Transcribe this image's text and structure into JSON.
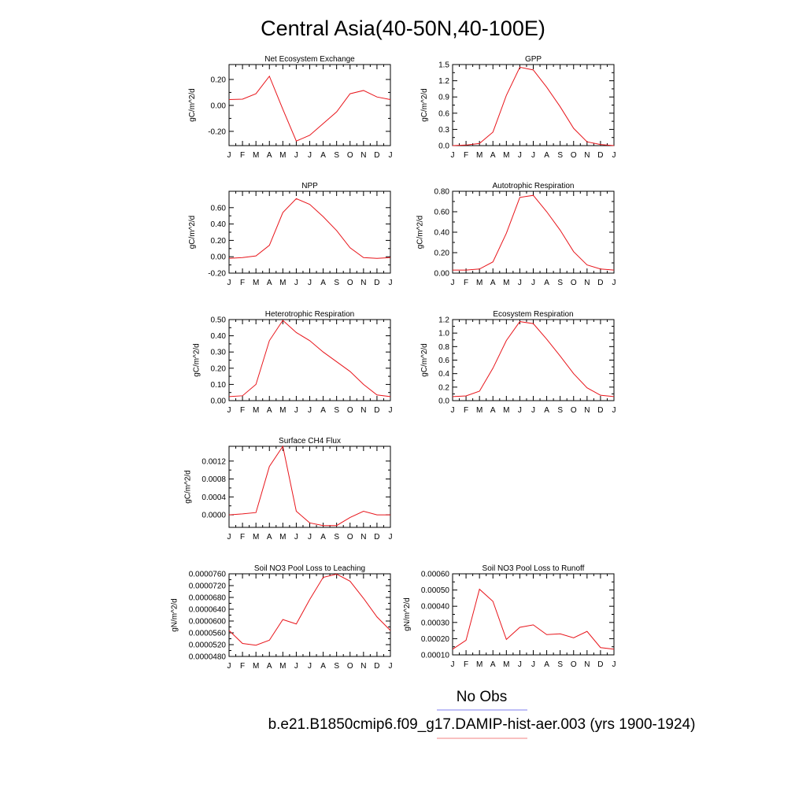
{
  "title": "Central Asia(40-50N,40-100E)",
  "legend": [
    {
      "label": "No Obs",
      "color": "#7f7fef"
    },
    {
      "label": "b.e21.B1850cmip6.f09_g17.DAMIP-hist-aer.003 (yrs 1900-1924)",
      "color": "#f08080"
    }
  ],
  "series_color": "#e8151b",
  "chart_data": [
    {
      "type": "line",
      "title": "Net Ecosystem Exchange",
      "ylabel": "gC/m^2/d",
      "categories": [
        "J",
        "F",
        "M",
        "A",
        "M",
        "J",
        "J",
        "A",
        "S",
        "O",
        "N",
        "D",
        "J"
      ],
      "values": [
        0.045,
        0.048,
        0.09,
        0.225,
        -0.03,
        -0.275,
        -0.23,
        -0.14,
        -0.05,
        0.09,
        0.115,
        0.065,
        0.045
      ],
      "ylim": [
        -0.31,
        0.315
      ],
      "yticks": [
        {
          "v": -0.2,
          "l": "-0.20"
        },
        {
          "v": 0,
          "l": "0.00"
        },
        {
          "v": 0.2,
          "l": "0.20"
        }
      ]
    },
    {
      "type": "line",
      "title": "GPP",
      "ylabel": "gC/m^2/d",
      "categories": [
        "J",
        "F",
        "M",
        "A",
        "M",
        "J",
        "J",
        "A",
        "S",
        "O",
        "N",
        "D",
        "J"
      ],
      "values": [
        0.0,
        0.01,
        0.04,
        0.25,
        0.93,
        1.45,
        1.4,
        1.08,
        0.72,
        0.32,
        0.07,
        0.02,
        0.0
      ],
      "ylim": [
        0,
        1.5
      ],
      "yticks": [
        {
          "v": 0,
          "l": "0.0"
        },
        {
          "v": 0.3,
          "l": "0.3"
        },
        {
          "v": 0.6,
          "l": "0.6"
        },
        {
          "v": 0.9,
          "l": "0.9"
        },
        {
          "v": 1.2,
          "l": "1.2"
        },
        {
          "v": 1.5,
          "l": "1.5"
        }
      ]
    },
    {
      "type": "line",
      "title": "NPP",
      "ylabel": "gC/m^2/d",
      "categories": [
        "J",
        "F",
        "M",
        "A",
        "M",
        "J",
        "J",
        "A",
        "S",
        "O",
        "N",
        "D",
        "J"
      ],
      "values": [
        -0.02,
        -0.01,
        0.01,
        0.14,
        0.54,
        0.71,
        0.64,
        0.49,
        0.32,
        0.11,
        -0.01,
        -0.02,
        -0.01
      ],
      "ylim": [
        -0.2,
        0.8
      ],
      "yticks": [
        {
          "v": -0.2,
          "l": "-0.20"
        },
        {
          "v": 0,
          "l": "0.00"
        },
        {
          "v": 0.2,
          "l": "0.20"
        },
        {
          "v": 0.4,
          "l": "0.40"
        },
        {
          "v": 0.6,
          "l": "0.60"
        }
      ]
    },
    {
      "type": "line",
      "title": "Autotrophic Respiration",
      "ylabel": "gC/m^2/d",
      "categories": [
        "J",
        "F",
        "M",
        "A",
        "M",
        "J",
        "J",
        "A",
        "S",
        "O",
        "N",
        "D",
        "J"
      ],
      "values": [
        0.03,
        0.03,
        0.04,
        0.11,
        0.39,
        0.74,
        0.76,
        0.6,
        0.42,
        0.21,
        0.08,
        0.04,
        0.03
      ],
      "ylim": [
        0,
        0.8
      ],
      "yticks": [
        {
          "v": 0,
          "l": "0.00"
        },
        {
          "v": 0.2,
          "l": "0.20"
        },
        {
          "v": 0.4,
          "l": "0.40"
        },
        {
          "v": 0.6,
          "l": "0.60"
        },
        {
          "v": 0.8,
          "l": "0.80"
        }
      ]
    },
    {
      "type": "line",
      "title": "Heterotrophic Respiration",
      "ylabel": "gC/m^2/d",
      "categories": [
        "J",
        "F",
        "M",
        "A",
        "M",
        "J",
        "J",
        "A",
        "S",
        "O",
        "N",
        "D",
        "J"
      ],
      "values": [
        0.025,
        0.03,
        0.1,
        0.37,
        0.495,
        0.42,
        0.37,
        0.3,
        0.24,
        0.18,
        0.1,
        0.035,
        0.025
      ],
      "ylim": [
        0,
        0.5
      ],
      "yticks": [
        {
          "v": 0,
          "l": "0.00"
        },
        {
          "v": 0.1,
          "l": "0.10"
        },
        {
          "v": 0.2,
          "l": "0.20"
        },
        {
          "v": 0.3,
          "l": "0.30"
        },
        {
          "v": 0.4,
          "l": "0.40"
        },
        {
          "v": 0.5,
          "l": "0.50"
        }
      ]
    },
    {
      "type": "line",
      "title": "Ecosystem Respiration",
      "ylabel": "gC/m^2/d",
      "categories": [
        "J",
        "F",
        "M",
        "A",
        "M",
        "J",
        "J",
        "A",
        "S",
        "O",
        "N",
        "D",
        "J"
      ],
      "values": [
        0.06,
        0.07,
        0.14,
        0.48,
        0.89,
        1.17,
        1.14,
        0.91,
        0.66,
        0.4,
        0.19,
        0.08,
        0.06
      ],
      "ylim": [
        0,
        1.2
      ],
      "yticks": [
        {
          "v": 0,
          "l": "0.0"
        },
        {
          "v": 0.2,
          "l": "0.2"
        },
        {
          "v": 0.4,
          "l": "0.4"
        },
        {
          "v": 0.6,
          "l": "0.6"
        },
        {
          "v": 0.8,
          "l": "0.8"
        },
        {
          "v": 1.0,
          "l": "1.0"
        },
        {
          "v": 1.2,
          "l": "1.2"
        }
      ]
    },
    {
      "type": "line",
      "title": "Surface CH4 Flux",
      "ylabel": "gC/m^2/d",
      "categories": [
        "J",
        "F",
        "M",
        "A",
        "M",
        "J",
        "J",
        "A",
        "S",
        "O",
        "N",
        "D",
        "J"
      ],
      "values": [
        0.0,
        2e-05,
        5e-05,
        0.00108,
        0.00153,
        8e-05,
        -0.00018,
        -0.00024,
        -0.00024,
        -6e-05,
        8e-05,
        0.0,
        0.0
      ],
      "ylim": [
        -0.00028,
        0.00153
      ],
      "yticks": [
        {
          "v": 0,
          "l": "0.0000"
        },
        {
          "v": 0.0004,
          "l": "0.0004"
        },
        {
          "v": 0.0008,
          "l": "0.0008"
        },
        {
          "v": 0.0012,
          "l": "0.0012"
        }
      ]
    },
    {
      "type": "line",
      "title": "Soil NO3 Pool Loss to Leaching",
      "ylabel": "gN/m^2/d",
      "categories": [
        "J",
        "F",
        "M",
        "A",
        "M",
        "J",
        "J",
        "A",
        "S",
        "O",
        "N",
        "D",
        "J"
      ],
      "values": [
        5.68e-05,
        5.24e-05,
        5.18e-05,
        5.35e-05,
        6.05e-05,
        5.9e-05,
        6.73e-05,
        7.48e-05,
        7.59e-05,
        7.35e-05,
        6.77e-05,
        6.14e-05,
        5.68e-05
      ],
      "ylim": [
        4.8e-05,
        7.6e-05
      ],
      "yticks": [
        {
          "v": 4.8e-05,
          "l": "0.0000480"
        },
        {
          "v": 5.2e-05,
          "l": "0.0000520"
        },
        {
          "v": 5.6e-05,
          "l": "0.0000560"
        },
        {
          "v": 6e-05,
          "l": "0.0000600"
        },
        {
          "v": 6.4e-05,
          "l": "0.0000640"
        },
        {
          "v": 6.8e-05,
          "l": "0.0000680"
        },
        {
          "v": 7.2e-05,
          "l": "0.0000720"
        },
        {
          "v": 7.6e-05,
          "l": "0.0000760"
        }
      ]
    },
    {
      "type": "line",
      "title": "Soil NO3 Pool Loss to Runoff",
      "ylabel": "gN/m^2/d",
      "categories": [
        "J",
        "F",
        "M",
        "A",
        "M",
        "J",
        "J",
        "A",
        "S",
        "O",
        "N",
        "D",
        "J"
      ],
      "values": [
        0.000135,
        0.00019,
        0.000505,
        0.00043,
        0.000195,
        0.00027,
        0.000285,
        0.000225,
        0.00023,
        0.000205,
        0.000245,
        0.000145,
        0.000135
      ],
      "ylim": [
        0.0001,
        0.0006
      ],
      "yticks": [
        {
          "v": 0.0001,
          "l": "0.00010"
        },
        {
          "v": 0.0002,
          "l": "0.00020"
        },
        {
          "v": 0.0003,
          "l": "0.00030"
        },
        {
          "v": 0.0004,
          "l": "0.00040"
        },
        {
          "v": 0.0005,
          "l": "0.00050"
        },
        {
          "v": 0.0006,
          "l": "0.00060"
        }
      ]
    }
  ]
}
